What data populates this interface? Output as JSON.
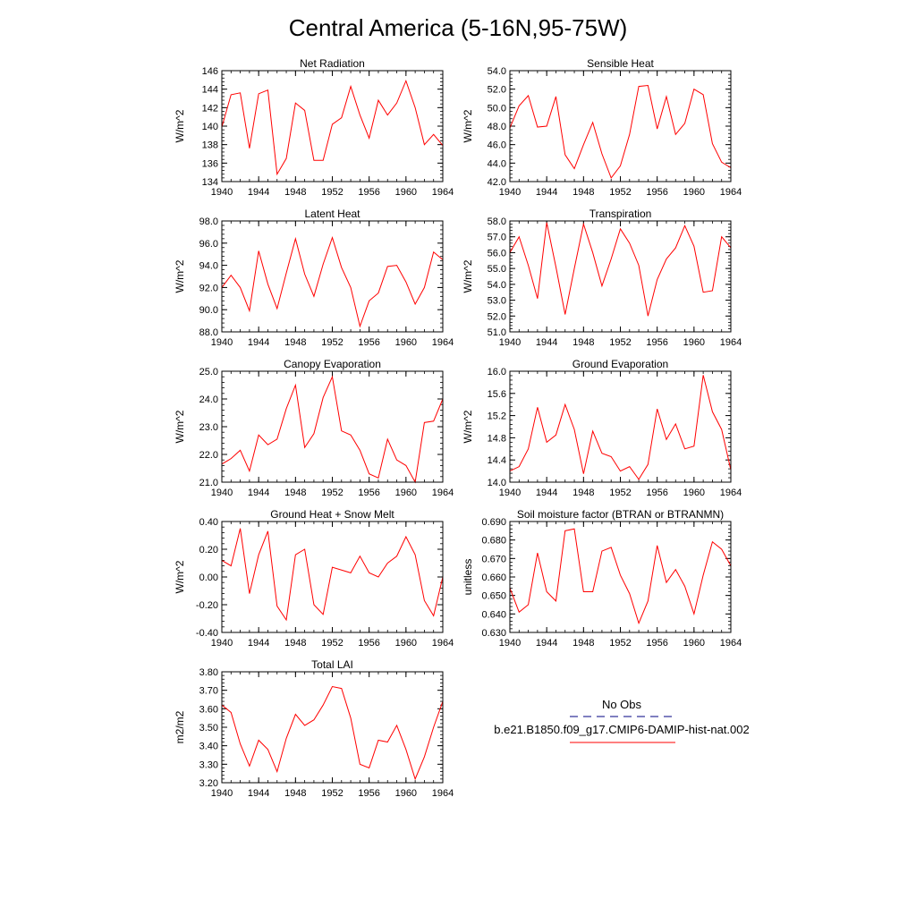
{
  "figure": {
    "title": "Central America (5-16N,95-75W)"
  },
  "legend": {
    "entries": [
      {
        "label": "No Obs",
        "color": "#000080",
        "style": "dashed"
      },
      {
        "label": "b.e21.B1850.f09_g17.CMIP6-DAMIP-hist-nat.002",
        "color": "#ff0000",
        "style": "solid"
      }
    ]
  },
  "colors": {
    "series": "#ff0000",
    "axis": "#000000"
  },
  "chart_data": [
    {
      "type": "line",
      "title": "Net Radiation",
      "ylabel": "W/m^2",
      "x": [
        1940,
        1941,
        1942,
        1943,
        1944,
        1945,
        1946,
        1947,
        1948,
        1949,
        1950,
        1951,
        1952,
        1953,
        1954,
        1955,
        1956,
        1957,
        1958,
        1959,
        1960,
        1961,
        1962,
        1963,
        1964
      ],
      "values": [
        139.9,
        143.4,
        143.6,
        137.6,
        143.5,
        143.9,
        134.8,
        136.5,
        142.5,
        141.7,
        136.3,
        136.3,
        140.2,
        140.9,
        144.3,
        141.2,
        138.7,
        142.8,
        141.2,
        142.5,
        144.9,
        142.0,
        138.0,
        139.1,
        137.9
      ],
      "xlim": [
        1940,
        1964
      ],
      "ylim": [
        134,
        146
      ],
      "yticks": [
        "134",
        "136",
        "138",
        "140",
        "142",
        "144",
        "146"
      ],
      "xticks": [
        "1940",
        "1944",
        "1948",
        "1952",
        "1956",
        "1960",
        "1964"
      ]
    },
    {
      "type": "line",
      "title": "Sensible Heat",
      "ylabel": "W/m^2",
      "x": [
        1940,
        1941,
        1942,
        1943,
        1944,
        1945,
        1946,
        1947,
        1948,
        1949,
        1950,
        1951,
        1952,
        1953,
        1954,
        1955,
        1956,
        1957,
        1958,
        1959,
        1960,
        1961,
        1962,
        1963,
        1964
      ],
      "values": [
        47.8,
        50.2,
        51.3,
        47.9,
        48.0,
        51.2,
        44.9,
        43.4,
        46.0,
        48.4,
        45.0,
        42.4,
        43.7,
        47.1,
        52.3,
        52.4,
        47.7,
        51.2,
        47.1,
        48.3,
        52.0,
        51.4,
        46.1,
        44.1,
        43.5
      ],
      "xlim": [
        1940,
        1964
      ],
      "ylim": [
        42,
        54
      ],
      "yticks": [
        "42.0",
        "44.0",
        "46.0",
        "48.0",
        "50.0",
        "52.0",
        "54.0"
      ],
      "xticks": [
        "1940",
        "1944",
        "1948",
        "1952",
        "1956",
        "1960",
        "1964"
      ]
    },
    {
      "type": "line",
      "title": "Latent Heat",
      "ylabel": "W/m^2",
      "x": [
        1940,
        1941,
        1942,
        1943,
        1944,
        1945,
        1946,
        1947,
        1948,
        1949,
        1950,
        1951,
        1952,
        1953,
        1954,
        1955,
        1956,
        1957,
        1958,
        1959,
        1960,
        1961,
        1962,
        1963,
        1964
      ],
      "values": [
        92.0,
        93.1,
        92.0,
        89.9,
        95.3,
        92.3,
        90.1,
        93.3,
        96.4,
        93.2,
        91.2,
        94.1,
        96.5,
        93.8,
        92.0,
        88.5,
        90.8,
        91.5,
        93.9,
        94.0,
        92.5,
        90.5,
        92.0,
        95.2,
        94.5
      ],
      "xlim": [
        1940,
        1964
      ],
      "ylim": [
        88,
        98
      ],
      "yticks": [
        "88.0",
        "90.0",
        "92.0",
        "94.0",
        "96.0",
        "98.0"
      ],
      "xticks": [
        "1940",
        "1944",
        "1948",
        "1952",
        "1956",
        "1960",
        "1964"
      ]
    },
    {
      "type": "line",
      "title": "Transpiration",
      "ylabel": "W/m^2",
      "x": [
        1940,
        1941,
        1942,
        1943,
        1944,
        1945,
        1946,
        1947,
        1948,
        1949,
        1950,
        1951,
        1952,
        1953,
        1954,
        1955,
        1956,
        1957,
        1958,
        1959,
        1960,
        1961,
        1962,
        1963,
        1964
      ],
      "values": [
        56.0,
        57.0,
        55.2,
        53.1,
        57.9,
        55.1,
        52.1,
        55.0,
        57.8,
        56.0,
        53.9,
        55.6,
        57.5,
        56.6,
        55.2,
        52.0,
        54.3,
        55.6,
        56.3,
        57.7,
        56.4,
        53.5,
        53.6,
        57.0,
        56.3
      ],
      "xlim": [
        1940,
        1964
      ],
      "ylim": [
        51,
        58
      ],
      "yticks": [
        "51.0",
        "52.0",
        "53.0",
        "54.0",
        "55.0",
        "56.0",
        "57.0",
        "58.0"
      ],
      "xticks": [
        "1940",
        "1944",
        "1948",
        "1952",
        "1956",
        "1960",
        "1964"
      ]
    },
    {
      "type": "line",
      "title": "Canopy Evaporation",
      "ylabel": "W/m^2",
      "x": [
        1940,
        1941,
        1942,
        1943,
        1944,
        1945,
        1946,
        1947,
        1948,
        1949,
        1950,
        1951,
        1952,
        1953,
        1954,
        1955,
        1956,
        1957,
        1958,
        1959,
        1960,
        1961,
        1962,
        1963,
        1964
      ],
      "values": [
        21.65,
        21.85,
        22.15,
        21.4,
        22.7,
        22.35,
        22.55,
        23.65,
        24.5,
        22.25,
        22.75,
        24.05,
        24.8,
        22.85,
        22.7,
        22.15,
        21.3,
        21.15,
        22.55,
        21.8,
        21.6,
        21.0,
        23.15,
        23.2,
        24.0
      ],
      "xlim": [
        1940,
        1964
      ],
      "ylim": [
        21,
        25
      ],
      "yticks": [
        "21.0",
        "22.0",
        "23.0",
        "24.0",
        "25.0"
      ],
      "xticks": [
        "1940",
        "1944",
        "1948",
        "1952",
        "1956",
        "1960",
        "1964"
      ]
    },
    {
      "type": "line",
      "title": "Ground Evaporation",
      "ylabel": "W/m^2",
      "x": [
        1940,
        1941,
        1942,
        1943,
        1944,
        1945,
        1946,
        1947,
        1948,
        1949,
        1950,
        1951,
        1952,
        1953,
        1954,
        1955,
        1956,
        1957,
        1958,
        1959,
        1960,
        1961,
        1962,
        1963,
        1964
      ],
      "values": [
        14.2,
        14.28,
        14.6,
        15.35,
        14.72,
        14.85,
        15.4,
        14.95,
        14.15,
        14.92,
        14.52,
        14.46,
        14.2,
        14.28,
        14.05,
        14.32,
        15.32,
        14.77,
        15.05,
        14.6,
        14.65,
        15.93,
        15.27,
        14.95,
        14.22
      ],
      "xlim": [
        1940,
        1964
      ],
      "ylim": [
        14.0,
        16.0
      ],
      "yticks": [
        "14.0",
        "14.4",
        "14.8",
        "15.2",
        "15.6",
        "16.0"
      ],
      "xticks": [
        "1940",
        "1944",
        "1948",
        "1952",
        "1956",
        "1960",
        "1964"
      ]
    },
    {
      "type": "line",
      "title": "Ground Heat + Snow Melt",
      "ylabel": "W/m^2",
      "x": [
        1940,
        1941,
        1942,
        1943,
        1944,
        1945,
        1946,
        1947,
        1948,
        1949,
        1950,
        1951,
        1952,
        1953,
        1954,
        1955,
        1956,
        1957,
        1958,
        1959,
        1960,
        1961,
        1962,
        1963,
        1964
      ],
      "values": [
        0.12,
        0.08,
        0.35,
        -0.12,
        0.16,
        0.33,
        -0.21,
        -0.31,
        0.16,
        0.2,
        -0.2,
        -0.27,
        0.07,
        0.05,
        0.03,
        0.15,
        0.03,
        0.0,
        0.1,
        0.15,
        0.29,
        0.16,
        -0.17,
        -0.28,
        0.0
      ],
      "xlim": [
        1940,
        1964
      ],
      "ylim": [
        -0.4,
        0.4
      ],
      "yticks": [
        "-0.40",
        "-0.20",
        "0.00",
        "0.20",
        "0.40"
      ],
      "xticks": [
        "1940",
        "1944",
        "1948",
        "1952",
        "1956",
        "1960",
        "1964"
      ]
    },
    {
      "type": "line",
      "title": "Soil moisture factor (BTRAN or BTRANMN)",
      "ylabel": "unitless",
      "x": [
        1940,
        1941,
        1942,
        1943,
        1944,
        1945,
        1946,
        1947,
        1948,
        1949,
        1950,
        1951,
        1952,
        1953,
        1954,
        1955,
        1956,
        1957,
        1958,
        1959,
        1960,
        1961,
        1962,
        1963,
        1964
      ],
      "values": [
        0.654,
        0.641,
        0.645,
        0.673,
        0.652,
        0.647,
        0.685,
        0.686,
        0.652,
        0.652,
        0.674,
        0.676,
        0.661,
        0.651,
        0.635,
        0.647,
        0.677,
        0.657,
        0.664,
        0.655,
        0.64,
        0.661,
        0.679,
        0.675,
        0.666
      ],
      "xlim": [
        1940,
        1964
      ],
      "ylim": [
        0.63,
        0.69
      ],
      "yticks": [
        "0.630",
        "0.640",
        "0.650",
        "0.660",
        "0.670",
        "0.680",
        "0.690"
      ],
      "xticks": [
        "1940",
        "1944",
        "1948",
        "1952",
        "1956",
        "1960",
        "1964"
      ]
    },
    {
      "type": "line",
      "title": "Total LAI",
      "ylabel": "m2/m2",
      "x": [
        1940,
        1941,
        1942,
        1943,
        1944,
        1945,
        1946,
        1947,
        1948,
        1949,
        1950,
        1951,
        1952,
        1953,
        1954,
        1955,
        1956,
        1957,
        1958,
        1959,
        1960,
        1961,
        1962,
        1963,
        1964
      ],
      "values": [
        3.62,
        3.58,
        3.41,
        3.29,
        3.43,
        3.38,
        3.26,
        3.44,
        3.57,
        3.51,
        3.54,
        3.62,
        3.72,
        3.71,
        3.55,
        3.3,
        3.28,
        3.43,
        3.42,
        3.51,
        3.38,
        3.22,
        3.34,
        3.5,
        3.64
      ],
      "xlim": [
        1940,
        1964
      ],
      "ylim": [
        3.2,
        3.8
      ],
      "yticks": [
        "3.20",
        "3.30",
        "3.40",
        "3.50",
        "3.60",
        "3.70",
        "3.80"
      ],
      "xticks": [
        "1940",
        "1944",
        "1948",
        "1952",
        "1956",
        "1960",
        "1964"
      ]
    }
  ]
}
